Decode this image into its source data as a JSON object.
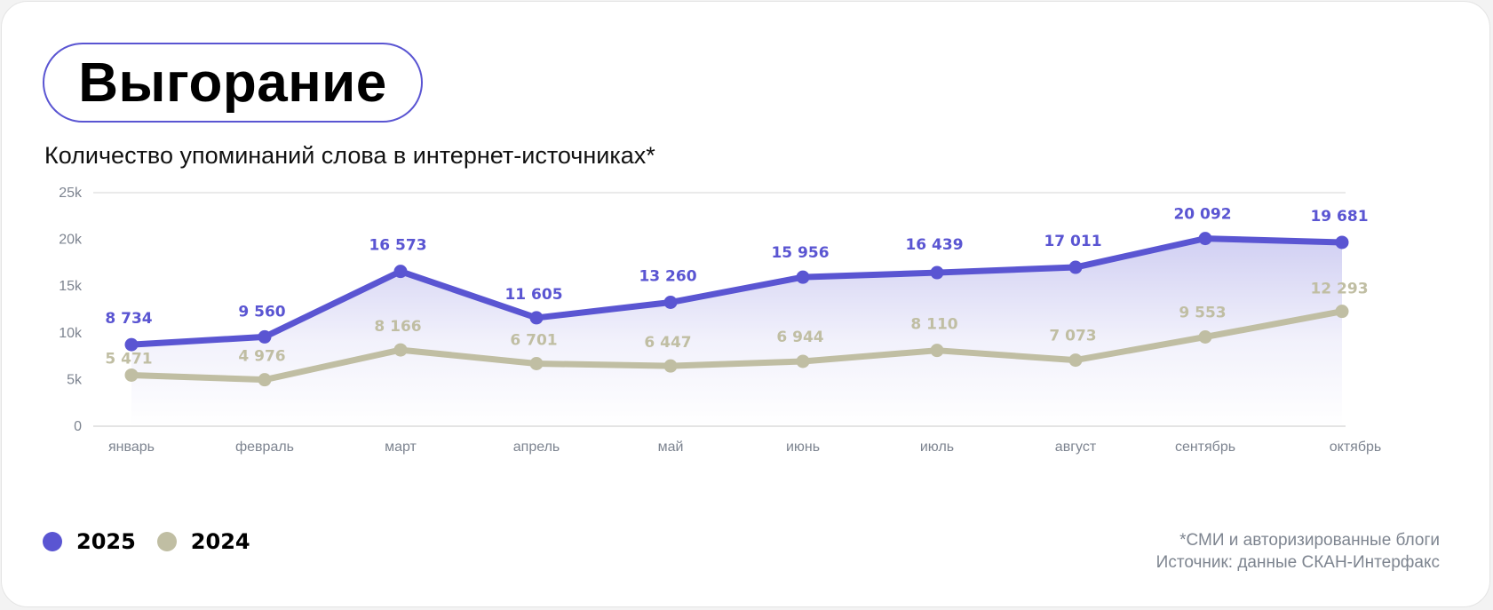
{
  "header": {
    "title": "Выгорание",
    "subtitle": "Количество упоминаний слова в интернет-источниках*"
  },
  "colors": {
    "series_2025": "#5a55d2",
    "series_2024": "#c0bea3",
    "title_border": "#5a55d2"
  },
  "legend": [
    {
      "label": "2025",
      "color": "#5a55d2"
    },
    {
      "label": "2024",
      "color": "#c0bea3"
    }
  ],
  "footnote": {
    "line1": "*СМИ и авторизированные блоги",
    "line2": "Источник: данные СКАН-Интерфакс"
  },
  "chart_data": {
    "type": "line",
    "title": "Выгорание",
    "subtitle": "Количество упоминаний слова в интернет-источниках*",
    "xlabel": "",
    "ylabel": "",
    "categories": [
      "январь",
      "февраль",
      "март",
      "апрель",
      "май",
      "июнь",
      "июль",
      "август",
      "сентябрь",
      "октябрь"
    ],
    "series": [
      {
        "name": "2025",
        "color": "#5a55d2",
        "values": [
          8734,
          9560,
          16573,
          11605,
          13260,
          15956,
          16439,
          17011,
          20092,
          19681
        ],
        "labels": [
          "8 734",
          "9 560",
          "16 573",
          "11 605",
          "13 260",
          "15 956",
          "16 439",
          "17 011",
          "20 092",
          "19 681"
        ]
      },
      {
        "name": "2024",
        "color": "#c0bea3",
        "values": [
          5471,
          4976,
          8166,
          6701,
          6447,
          6944,
          8110,
          7073,
          9553,
          12293
        ],
        "labels": [
          "5 471",
          "4 976",
          "8 166",
          "6 701",
          "6 447",
          "6 944",
          "8 110",
          "7 073",
          "9 553",
          "12 293"
        ]
      }
    ],
    "y_ticks": [
      "0",
      "5k",
      "10k",
      "15k",
      "20k",
      "25k"
    ],
    "ylim": [
      0,
      25000
    ],
    "grid": "horizontal lines at 25k and 0",
    "legend_position": "bottom-left",
    "area_fill": "gradient under 2025 series"
  }
}
